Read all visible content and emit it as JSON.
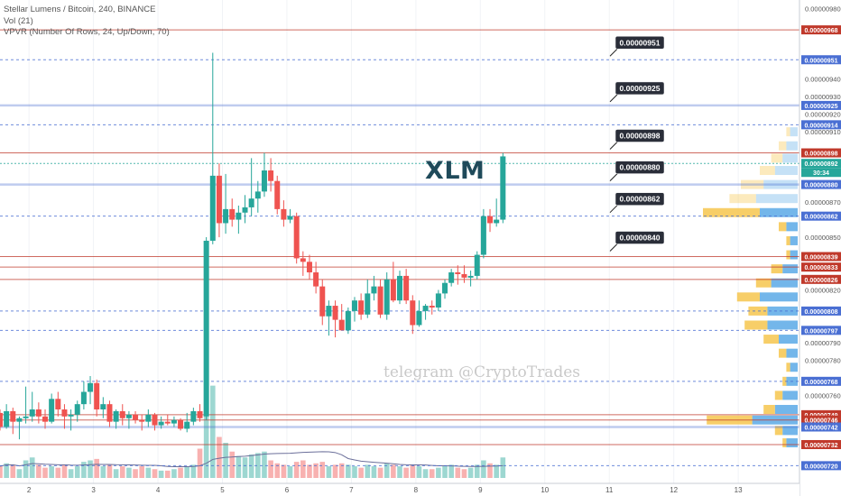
{
  "legend": {
    "symbol": "Stellar Lumens / Bitcoin, 240, BINANCE",
    "vol": "Vol (21)",
    "vpvr": "VPVR (Number Of Rows, 24, Up/Down, 70)"
  },
  "annotation_title": "XLM",
  "watermark": "telegram @CryptoTrades",
  "price_clock": "30:34",
  "colors": {
    "up": "#26a69a",
    "down": "#ef5350",
    "resistance_line": "#c0392b",
    "support_line": "#4a6fd3",
    "vpvr_up": "#5aa9e6",
    "vpvr_down": "#f5c242"
  },
  "chart_data": {
    "type": "candlestick",
    "y_range": [
      7.13e-06,
      9.85e-06
    ],
    "x_range": [
      1.55,
      13.95
    ],
    "x_ticks": [
      "2",
      "3",
      "4",
      "5",
      "6",
      "7",
      "8",
      "9",
      "10",
      "11",
      "12",
      "13"
    ],
    "y_ticks": [
      "0.00000980",
      "0.00000950",
      "0.00000940",
      "0.00000930",
      "0.00000920",
      "0.00000910",
      "0.00000870",
      "0.00000850",
      "0.00000820",
      "0.00000790",
      "0.00000780",
      "0.00000760"
    ],
    "candles": [
      [
        1.55,
        7.5e-06,
        7.52e-06,
        7.4e-06,
        7.42e-06,
        8
      ],
      [
        1.65,
        7.42e-06,
        7.55e-06,
        7.41e-06,
        7.51e-06,
        10
      ],
      [
        1.75,
        7.51e-06,
        7.53e-06,
        7.38e-06,
        7.45e-06,
        9
      ],
      [
        1.85,
        7.45e-06,
        7.48e-06,
        7.35e-06,
        7.47e-06,
        6
      ],
      [
        1.95,
        7.47e-06,
        7.65e-06,
        7.44e-06,
        7.48e-06,
        12
      ],
      [
        2.05,
        7.48e-06,
        7.62e-06,
        7.45e-06,
        7.52e-06,
        14
      ],
      [
        2.15,
        7.52e-06,
        7.56e-06,
        7.44e-06,
        7.48e-06,
        9
      ],
      [
        2.25,
        7.48e-06,
        7.52e-06,
        7.41e-06,
        7.45e-06,
        7
      ],
      [
        2.35,
        7.45e-06,
        7.61e-06,
        7.44e-06,
        7.58e-06,
        8
      ],
      [
        2.45,
        7.58e-06,
        7.62e-06,
        7.48e-06,
        7.52e-06,
        7
      ],
      [
        2.55,
        7.52e-06,
        7.55e-06,
        7.41e-06,
        7.48e-06,
        9
      ],
      [
        2.65,
        7.48e-06,
        7.52e-06,
        7.4e-06,
        7.49e-06,
        6
      ],
      [
        2.75,
        7.49e-06,
        7.57e-06,
        7.45e-06,
        7.55e-06,
        8
      ],
      [
        2.85,
        7.55e-06,
        7.68e-06,
        7.52e-06,
        7.62e-06,
        11
      ],
      [
        2.95,
        7.62e-06,
        7.71e-06,
        7.55e-06,
        7.67e-06,
        12
      ],
      [
        3.05,
        7.67e-06,
        7.69e-06,
        7.48e-06,
        7.52e-06,
        13
      ],
      [
        3.15,
        7.52e-06,
        7.59e-06,
        7.47e-06,
        7.55e-06,
        8
      ],
      [
        3.25,
        7.55e-06,
        7.57e-06,
        7.42e-06,
        7.45e-06,
        9
      ],
      [
        3.35,
        7.45e-06,
        7.52e-06,
        7.41e-06,
        7.51e-06,
        6
      ],
      [
        3.45,
        7.51e-06,
        7.55e-06,
        7.43e-06,
        7.47e-06,
        8
      ],
      [
        3.55,
        7.47e-06,
        7.51e-06,
        7.41e-06,
        7.49e-06,
        7
      ],
      [
        3.65,
        7.49e-06,
        7.51e-06,
        7.44e-06,
        7.46e-06,
        6
      ],
      [
        3.75,
        7.46e-06,
        7.49e-06,
        7.4e-06,
        7.45e-06,
        8
      ],
      [
        3.85,
        7.45e-06,
        7.52e-06,
        7.42e-06,
        7.49e-06,
        7
      ],
      [
        3.95,
        7.49e-06,
        7.5e-06,
        7.4e-06,
        7.43e-06,
        6
      ],
      [
        4.05,
        7.43e-06,
        7.48e-06,
        7.41e-06,
        7.45e-06,
        5
      ],
      [
        4.15,
        7.45e-06,
        7.49e-06,
        7.43e-06,
        7.44e-06,
        5
      ],
      [
        4.25,
        7.44e-06,
        7.48e-06,
        7.42e-06,
        7.46e-06,
        6
      ],
      [
        4.35,
        7.46e-06,
        7.47e-06,
        7.4e-06,
        7.41e-06,
        7
      ],
      [
        4.45,
        7.41e-06,
        7.5e-06,
        7.39e-06,
        7.45e-06,
        8
      ],
      [
        4.55,
        7.45e-06,
        7.53e-06,
        7.43e-06,
        7.51e-06,
        9
      ],
      [
        4.65,
        7.51e-06,
        7.55e-06,
        7.45e-06,
        7.47e-06,
        20
      ],
      [
        4.75,
        7.48e-06,
        8.5e-06,
        7.46e-06,
        8.48e-06,
        42
      ],
      [
        4.85,
        8.48e-06,
        9.55e-06,
        8.46e-06,
        8.85e-06,
        63
      ],
      [
        4.95,
        8.85e-06,
        8.92e-06,
        8.5e-06,
        8.58e-06,
        28
      ],
      [
        5.05,
        8.58e-06,
        8.86e-06,
        8.52e-06,
        8.66e-06,
        24
      ],
      [
        5.15,
        8.66e-06,
        8.72e-06,
        8.56e-06,
        8.6e-06,
        18
      ],
      [
        5.25,
        8.6e-06,
        8.68e-06,
        8.52e-06,
        8.64e-06,
        15
      ],
      [
        5.35,
        8.64e-06,
        8.74e-06,
        8.58e-06,
        8.67e-06,
        14
      ],
      [
        5.45,
        8.67e-06,
        8.95e-06,
        8.62e-06,
        8.72e-06,
        16
      ],
      [
        5.55,
        8.72e-06,
        8.82e-06,
        8.64e-06,
        8.76e-06,
        17
      ],
      [
        5.65,
        8.76e-06,
        8.98e-06,
        8.73e-06,
        8.88e-06,
        18
      ],
      [
        5.75,
        8.88e-06,
        8.95e-06,
        8.76e-06,
        8.82e-06,
        12
      ],
      [
        5.85,
        8.82e-06,
        8.85e-06,
        8.63e-06,
        8.66e-06,
        10
      ],
      [
        5.95,
        8.66e-06,
        8.71e-06,
        8.56e-06,
        8.6e-06,
        9
      ],
      [
        6.05,
        8.6e-06,
        8.66e-06,
        8.58e-06,
        8.62e-06,
        8
      ],
      [
        6.15,
        8.62e-06,
        8.64e-06,
        8.35e-06,
        8.38e-06,
        11
      ],
      [
        6.25,
        8.38e-06,
        8.42e-06,
        8.28e-06,
        8.36e-06,
        12
      ],
      [
        6.35,
        8.36e-06,
        8.4e-06,
        8.26e-06,
        8.3e-06,
        9
      ],
      [
        6.45,
        8.3e-06,
        8.36e-06,
        8.18e-06,
        8.22e-06,
        10
      ],
      [
        6.55,
        8.22e-06,
        8.26e-06,
        8e-06,
        8.05e-06,
        11
      ],
      [
        6.65,
        8.05e-06,
        8.14e-06,
        7.94e-06,
        8.11e-06,
        8
      ],
      [
        6.75,
        8.11e-06,
        8.14e-06,
        7.93e-06,
        8.03e-06,
        9
      ],
      [
        6.85,
        8.03e-06,
        8.12e-06,
        7.97e-06,
        7.97e-06,
        10
      ],
      [
        6.95,
        7.97e-06,
        8.1e-06,
        7.95e-06,
        8.08e-06,
        9
      ],
      [
        7.05,
        8.08e-06,
        8.16e-06,
        8.02e-06,
        8.14e-06,
        8
      ],
      [
        7.15,
        8.14e-06,
        8.18e-06,
        8.03e-06,
        8.06e-06,
        7
      ],
      [
        7.25,
        8.06e-06,
        8.26e-06,
        8.04e-06,
        8.18e-06,
        9
      ],
      [
        7.35,
        8.18e-06,
        8.28e-06,
        8.14e-06,
        8.22e-06,
        8
      ],
      [
        7.45,
        8.22e-06,
        8.26e-06,
        8.04e-06,
        8.06e-06,
        7
      ],
      [
        7.55,
        8.06e-06,
        8.3e-06,
        8.03e-06,
        8.26e-06,
        10
      ],
      [
        7.65,
        8.26e-06,
        8.36e-06,
        8.13e-06,
        8.14e-06,
        9
      ],
      [
        7.75,
        8.14e-06,
        8.31e-06,
        8.12e-06,
        8.28e-06,
        8
      ],
      [
        7.85,
        8.28e-06,
        8.32e-06,
        8.12e-06,
        8.14e-06,
        7
      ],
      [
        7.95,
        8.14e-06,
        8.17e-06,
        7.95e-06,
        8e-06,
        9
      ],
      [
        8.05,
        8e-06,
        8.14e-06,
        7.99e-06,
        8.08e-06,
        8
      ],
      [
        8.15,
        8.08e-06,
        8.12e-06,
        8.03e-06,
        8.11e-06,
        6
      ],
      [
        8.25,
        8.11e-06,
        8.14e-06,
        8.06e-06,
        8.1e-06,
        6
      ],
      [
        8.35,
        8.1e-06,
        8.2e-06,
        8.08e-06,
        8.18e-06,
        7
      ],
      [
        8.45,
        8.18e-06,
        8.26e-06,
        8.15e-06,
        8.24e-06,
        8
      ],
      [
        8.55,
        8.24e-06,
        8.32e-06,
        8.22e-06,
        8.3e-06,
        9
      ],
      [
        8.65,
        8.3e-06,
        8.34e-06,
        8.23e-06,
        8.29e-06,
        7
      ],
      [
        8.75,
        8.29e-06,
        8.34e-06,
        8.24e-06,
        8.27e-06,
        6
      ],
      [
        8.85,
        8.27e-06,
        8.31e-06,
        8.22e-06,
        8.28e-06,
        7
      ],
      [
        8.95,
        8.28e-06,
        8.42e-06,
        8.26e-06,
        8.4e-06,
        9
      ],
      [
        9.05,
        8.4e-06,
        8.66e-06,
        8.38e-06,
        8.62e-06,
        12
      ],
      [
        9.15,
        8.62e-06,
        8.66e-06,
        8.53e-06,
        8.58e-06,
        10
      ],
      [
        9.25,
        8.58e-06,
        8.72e-06,
        8.56e-06,
        8.6e-06,
        9
      ],
      [
        9.35,
        8.6e-06,
        8.98e-06,
        8.58e-06,
        8.96e-06,
        14
      ]
    ],
    "levels": [
      {
        "price": 9.68e-06,
        "label": "0.00000968",
        "kind": "resistance"
      },
      {
        "price": 9.51e-06,
        "label": "0.00000951",
        "kind": "support"
      },
      {
        "price": 9.25e-06,
        "label": "0.00000925",
        "kind": "support"
      },
      {
        "price": 9.14e-06,
        "label": "0.00000914",
        "kind": "support"
      },
      {
        "price": 8.98e-06,
        "label": "0.00000898",
        "kind": "resistance"
      },
      {
        "price": 8.92e-06,
        "label": "0.00000892",
        "kind": "price"
      },
      {
        "price": 8.8e-06,
        "label": "0.00000880",
        "kind": "support"
      },
      {
        "price": 8.62e-06,
        "label": "0.00000862",
        "kind": "support"
      },
      {
        "price": 8.39e-06,
        "label": "0.00000839",
        "kind": "resistance"
      },
      {
        "price": 8.33e-06,
        "label": "0.00000833",
        "kind": "resistance"
      },
      {
        "price": 8.26e-06,
        "label": "0.00000826",
        "kind": "resistance"
      },
      {
        "price": 8.08e-06,
        "label": "0.00000808",
        "kind": "support"
      },
      {
        "price": 7.97e-06,
        "label": "0.00000797",
        "kind": "support"
      },
      {
        "price": 7.68e-06,
        "label": "0.00000768",
        "kind": "support"
      },
      {
        "price": 7.49e-06,
        "label": "0.00000749",
        "kind": "resistance"
      },
      {
        "price": 7.46e-06,
        "label": "0.00000746",
        "kind": "resistance"
      },
      {
        "price": 7.42e-06,
        "label": "0.00000742",
        "kind": "support"
      },
      {
        "price": 7.32e-06,
        "label": "0.00000732",
        "kind": "resistance"
      },
      {
        "price": 7.2e-06,
        "label": "0.00000720",
        "kind": "support"
      }
    ],
    "callouts": [
      "0.00000951",
      "0.00000925",
      "0.00000898",
      "0.00000880",
      "0.00000862",
      "0.00000840"
    ],
    "vpvr": [
      [
        9.1e-06,
        2,
        1
      ],
      [
        9.02e-06,
        3,
        2
      ],
      [
        8.95e-06,
        4,
        3
      ],
      [
        8.88e-06,
        6,
        4
      ],
      [
        8.8e-06,
        9,
        6
      ],
      [
        8.72e-06,
        11,
        7
      ],
      [
        8.64e-06,
        10,
        15
      ],
      [
        8.56e-06,
        3,
        2
      ],
      [
        8.48e-06,
        2,
        1
      ],
      [
        8.4e-06,
        2,
        1
      ],
      [
        8.32e-06,
        4,
        3
      ],
      [
        8.24e-06,
        7,
        4
      ],
      [
        8.16e-06,
        10,
        6
      ],
      [
        8.08e-06,
        8,
        5
      ],
      [
        8e-06,
        8,
        6
      ],
      [
        7.92e-06,
        5,
        4
      ],
      [
        7.84e-06,
        3,
        2
      ],
      [
        7.76e-06,
        2,
        1
      ],
      [
        7.68e-06,
        3,
        1
      ],
      [
        7.6e-06,
        4,
        2
      ],
      [
        7.52e-06,
        6,
        3
      ],
      [
        7.46e-06,
        12,
        12
      ],
      [
        7.4e-06,
        4,
        2
      ],
      [
        7.33e-06,
        3,
        1
      ]
    ]
  }
}
